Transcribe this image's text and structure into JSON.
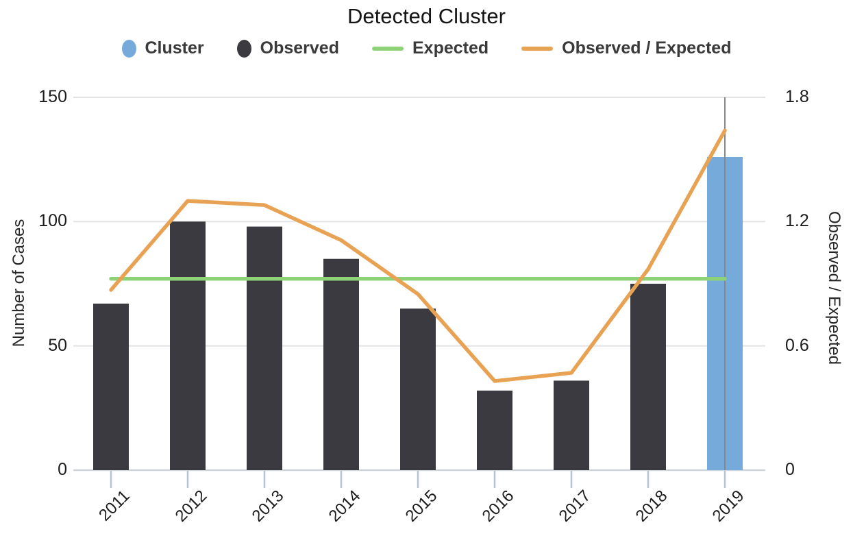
{
  "title": "Detected Cluster",
  "legend": [
    {
      "label": "Cluster",
      "marker": "circle",
      "color": "#76aadb"
    },
    {
      "label": "Observed",
      "marker": "circle",
      "color": "#3a3a40"
    },
    {
      "label": "Expected",
      "marker": "line",
      "color": "#8ed278"
    },
    {
      "label": "Observed / Expected",
      "marker": "line",
      "color": "#e8a254"
    }
  ],
  "chart_data": {
    "type": "bar",
    "title": "Detected Cluster",
    "categories": [
      "2011",
      "2012",
      "2013",
      "2014",
      "2015",
      "2016",
      "2017",
      "2018",
      "2019"
    ],
    "series": [
      {
        "name": "Observed",
        "type": "bar",
        "axis": "left",
        "values": [
          67,
          100,
          98,
          85,
          65,
          32,
          36,
          75,
          126
        ]
      },
      {
        "name": "Expected",
        "type": "line",
        "axis": "left",
        "values": [
          77,
          77,
          77,
          77,
          77,
          77,
          77,
          77,
          77
        ]
      },
      {
        "name": "Observed / Expected",
        "type": "line",
        "axis": "right",
        "values": [
          0.87,
          1.3,
          1.28,
          1.11,
          0.85,
          0.43,
          0.47,
          0.97,
          1.64
        ]
      }
    ],
    "cluster_category": "2019",
    "ylabel_left": "Number of Cases",
    "ylabel_right": "Observed / Expected",
    "yticks_left": [
      0,
      50,
      100,
      150
    ],
    "yticks_right": [
      0,
      0.6,
      1.2,
      1.8
    ],
    "ylim_left": [
      0,
      150
    ],
    "ylim_right": [
      0,
      1.8
    ],
    "grid": true,
    "legend_position": "top"
  },
  "colors": {
    "observed_bar": "#3a3a40",
    "cluster_bar": "#76aadb",
    "expected_line": "#8ed278",
    "ratio_line": "#e8a254",
    "gridline": "#e4e4e6",
    "axis_line": "#ccd3da",
    "tick_mark": "#b5c2d8",
    "cluster_marker_line": "#87878b",
    "title_text": "#151515",
    "legend_text": "#3a3a3a",
    "tick_text": "#1c1c1c"
  }
}
